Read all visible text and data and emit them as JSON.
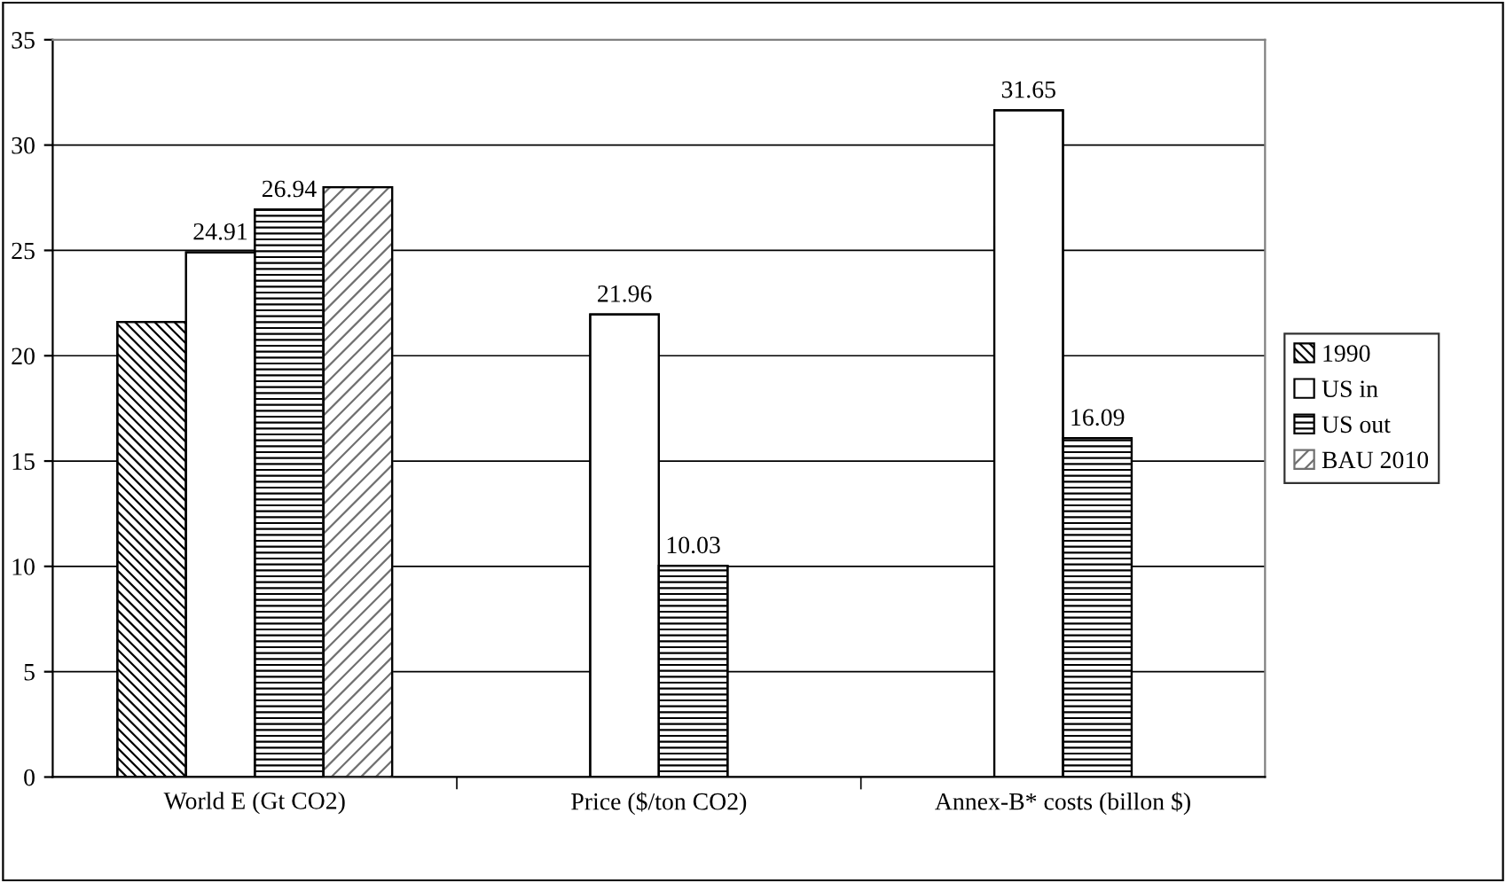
{
  "chart_data": {
    "type": "bar",
    "categories": [
      "World E (Gt CO2)",
      "Price ($/ton CO2)",
      "Annex-B* costs (billon $)"
    ],
    "series": [
      {
        "name": "1990",
        "color": "#000000",
        "values": [
          21.6,
          null,
          null
        ]
      },
      {
        "name": "US in",
        "color": "#ffffff",
        "values": [
          24.91,
          21.96,
          31.65
        ],
        "value_labels": [
          "24.91",
          "21.96",
          "31.65"
        ]
      },
      {
        "name": "US out",
        "color": "#000000",
        "values": [
          26.94,
          10.03,
          16.09
        ],
        "value_labels": [
          "26.94",
          "10.03",
          "16.09"
        ]
      },
      {
        "name": "BAU 2010",
        "color": "#707070",
        "values": [
          28.0,
          null,
          null
        ]
      }
    ],
    "ylim": [
      0,
      35
    ],
    "yticks": [
      0,
      5,
      10,
      15,
      20,
      25,
      30,
      35
    ],
    "grid": "y",
    "legend": "right"
  }
}
